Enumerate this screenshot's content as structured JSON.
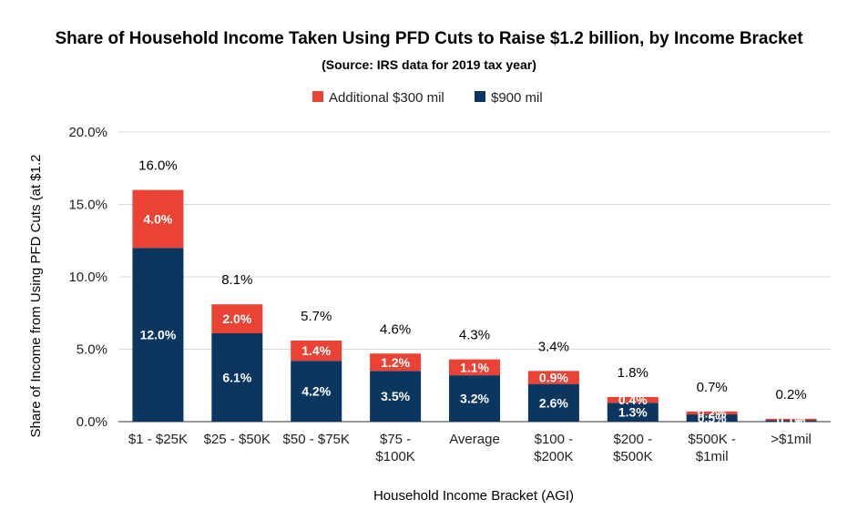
{
  "chart_data": {
    "type": "bar",
    "stacked": true,
    "title": "Share of Household Income Taken Using PFD Cuts to Raise $1.2 billion, by Income Bracket",
    "subtitle": "(Source: IRS data for 2019 tax year)",
    "xlabel": "Household Income Bracket (AGI)",
    "ylabel": "Share of Income from Using PFD Cuts (at $1.2",
    "ylim": [
      0,
      20
    ],
    "yticks": [
      "0.0%",
      "5.0%",
      "10.0%",
      "15.0%",
      "20.0%"
    ],
    "grid": true,
    "legend_position": "top",
    "categories": [
      [
        "$1 - $25K"
      ],
      [
        "$25 - $50K"
      ],
      [
        "$50 - $75K"
      ],
      [
        "$75 -",
        "$100K"
      ],
      [
        "Average"
      ],
      [
        "$100 -",
        "$200K"
      ],
      [
        "$200 -",
        "$500K"
      ],
      [
        "$500K -",
        "$1mil"
      ],
      [
        ">$1mil"
      ]
    ],
    "series": [
      {
        "name": "$900 mil",
        "color": "#0b3660",
        "values": [
          12.0,
          6.1,
          4.2,
          3.5,
          3.2,
          2.6,
          1.3,
          0.5,
          0.1
        ],
        "labels": [
          "12.0%",
          "6.1%",
          "4.2%",
          "3.5%",
          "3.2%",
          "2.6%",
          "1.3%",
          "0.5%",
          "0.1%"
        ]
      },
      {
        "name": "Additional $300 mil",
        "color": "#ea4335",
        "values": [
          4.0,
          2.0,
          1.4,
          1.2,
          1.1,
          0.9,
          0.4,
          0.2,
          0.1
        ],
        "labels": [
          "4.0%",
          "2.0%",
          "1.4%",
          "1.2%",
          "1.1%",
          "0.9%",
          "0.4%",
          "0.2%",
          "0.1%"
        ]
      }
    ],
    "totals": [
      "16.0%",
      "8.1%",
      "5.7%",
      "4.6%",
      "4.3%",
      "3.4%",
      "1.8%",
      "0.7%",
      "0.2%"
    ],
    "legend_order": [
      "Additional $300 mil",
      "$900 mil"
    ]
  }
}
